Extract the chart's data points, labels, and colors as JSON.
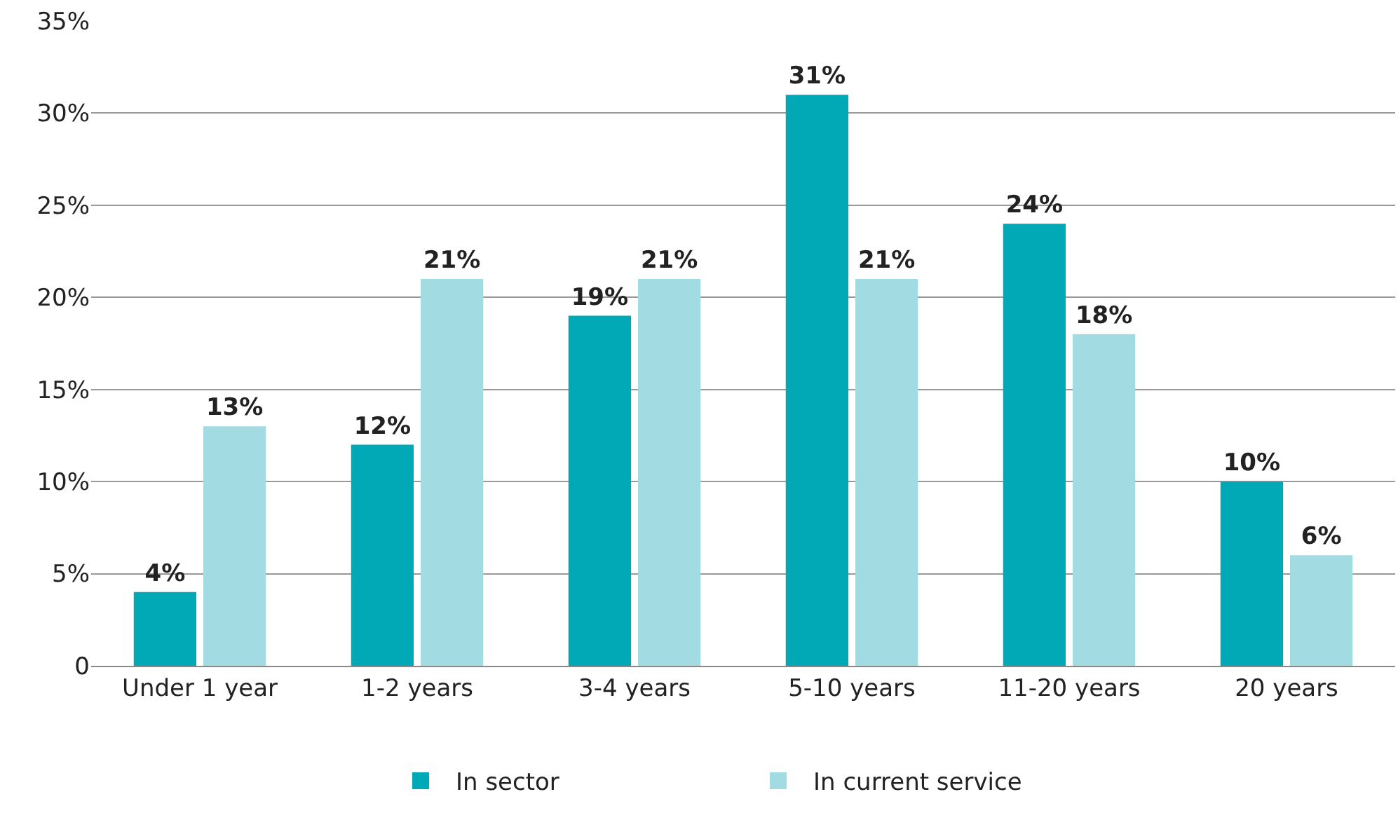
{
  "chart_data": {
    "type": "bar",
    "categories": [
      "Under 1 year",
      "1-2 years",
      "3-4 years",
      "5-10 years",
      "11-20 years",
      "20 years"
    ],
    "series": [
      {
        "name": "In sector",
        "color": "#00a9b5",
        "values": [
          4,
          12,
          19,
          31,
          24,
          10
        ],
        "value_labels": [
          "4%",
          "12%",
          "19%",
          "31%",
          "24%",
          "10%"
        ]
      },
      {
        "name": "In current service",
        "color": "#a3dbe2",
        "values": [
          13,
          21,
          21,
          21,
          18,
          6
        ],
        "value_labels": [
          "13%",
          "21%",
          "21%",
          "21%",
          "18%",
          "6%"
        ]
      }
    ],
    "ylim": [
      0,
      35
    ],
    "yticks": [
      0,
      {
        "value": 5,
        "label": "5%"
      },
      {
        "value": 10,
        "label": "10%"
      },
      {
        "value": 15,
        "label": "15%"
      },
      {
        "value": 20,
        "label": "20%"
      },
      {
        "value": 25,
        "label": "25%"
      },
      {
        "value": 30,
        "label": "30%"
      },
      {
        "value": 35,
        "label": "35%"
      }
    ],
    "grid": "y",
    "legend": "bottom"
  }
}
